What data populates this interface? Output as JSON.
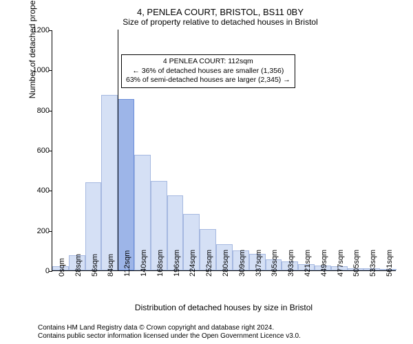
{
  "titles": {
    "main": "4, PENLEA COURT, BRISTOL, BS11 0BY",
    "sub": "Size of property relative to detached houses in Bristol"
  },
  "axes": {
    "y_label": "Number of detached properties",
    "x_label": "Distribution of detached houses by size in Bristol",
    "y_ticks": [
      0,
      200,
      400,
      600,
      800,
      1000,
      1200
    ],
    "y_max": 1200,
    "x_tick_labels": [
      "0sqm",
      "28sqm",
      "56sqm",
      "84sqm",
      "112sqm",
      "140sqm",
      "168sqm",
      "196sqm",
      "224sqm",
      "252sqm",
      "280sqm",
      "309sqm",
      "337sqm",
      "365sqm",
      "393sqm",
      "421sqm",
      "449sqm",
      "477sqm",
      "505sqm",
      "533sqm",
      "561sqm"
    ]
  },
  "chart": {
    "type": "histogram",
    "bar_color": "#d5e0f5",
    "bar_border": "#a5b8e0",
    "highlight_color": "#9db5e8",
    "highlight_border": "#6a8dd9",
    "bar_values": [
      20,
      75,
      440,
      875,
      855,
      575,
      445,
      375,
      280,
      205,
      130,
      100,
      82,
      55,
      45,
      30,
      25,
      20,
      12,
      10,
      8
    ],
    "highlight_index": 4,
    "marker_at_bar": 4,
    "bar_count": 21
  },
  "infobox": {
    "line1": "4 PENLEA COURT: 112sqm",
    "line2": "← 36% of detached houses are smaller (1,356)",
    "line3": "63% of semi-detached houses are larger (2,345) →"
  },
  "footer": {
    "line1": "Contains HM Land Registry data © Crown copyright and database right 2024.",
    "line2": "Contains public sector information licensed under the Open Government Licence v3.0."
  }
}
